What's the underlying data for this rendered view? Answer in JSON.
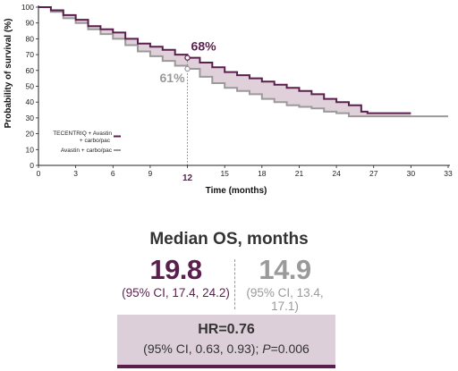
{
  "chart_data": {
    "type": "line",
    "title": "",
    "xlabel": "Time (months)",
    "ylabel": "Probability of survival (%)",
    "xlim": [
      0,
      33
    ],
    "ylim": [
      0,
      100
    ],
    "xticks": [
      0,
      3,
      6,
      9,
      12,
      15,
      18,
      21,
      24,
      27,
      30,
      33
    ],
    "yticks": [
      0,
      10,
      20,
      30,
      40,
      50,
      60,
      70,
      80,
      90,
      100
    ],
    "highlight_x": 12,
    "highlight_x_label": "12",
    "legend_position": "lower-left",
    "series": [
      {
        "name": "TECENTRIQ + Avastin + carbo/pac",
        "color": "#5b1f4e",
        "x": [
          0,
          1,
          2,
          3,
          4,
          5,
          6,
          7,
          8,
          9,
          10,
          11,
          12,
          13,
          14,
          15,
          16,
          17,
          18,
          19,
          20,
          21,
          22,
          23,
          24,
          25,
          26,
          26.5,
          30
        ],
        "y": [
          100,
          98,
          95,
          92,
          88,
          86,
          84,
          80,
          77,
          75,
          73,
          70,
          68,
          65,
          62,
          59,
          57,
          55,
          53,
          51,
          49,
          47,
          45,
          42,
          40,
          38,
          34,
          33,
          33
        ]
      },
      {
        "name": "Avastin + carbo/pac",
        "color": "#9a9a9a",
        "x": [
          0,
          1,
          2,
          3,
          4,
          5,
          6,
          7,
          8,
          9,
          10,
          11,
          12,
          13,
          14,
          15,
          16,
          17,
          18,
          19,
          20,
          21,
          22,
          23,
          24,
          25,
          33
        ],
        "y": [
          100,
          97,
          93,
          90,
          86,
          83,
          80,
          76,
          72,
          69,
          66,
          63,
          61,
          56,
          52,
          49,
          47,
          45,
          42,
          40,
          38,
          37,
          36,
          34,
          33,
          31,
          31
        ]
      }
    ],
    "annotations": [
      {
        "label": "68%",
        "x": 12,
        "y": 68,
        "color": "#5b1f4e"
      },
      {
        "label": "61%",
        "x": 12,
        "y": 61,
        "color": "#9a9a9a"
      }
    ],
    "legend": [
      {
        "label_lines": [
          "TECENTRIQ + Avastin",
          "+ carbo/pac"
        ],
        "color": "#5b1f4e"
      },
      {
        "label_lines": [
          "Avastin + carbo/pac"
        ],
        "color": "#9a9a9a"
      }
    ]
  },
  "summary": {
    "median_title": "Median OS, months",
    "left_value": "19.8",
    "left_ci": "(95% CI, 17.4, 24.2)",
    "right_value": "14.9",
    "right_ci": "(95% CI, 13.4, 17.1)",
    "hr_title": "HR=0.76",
    "hr_ci_prefix": "(95% CI, 0.63, 0.93); ",
    "hr_p_symbol": "P",
    "hr_p_value": "=0.006"
  }
}
